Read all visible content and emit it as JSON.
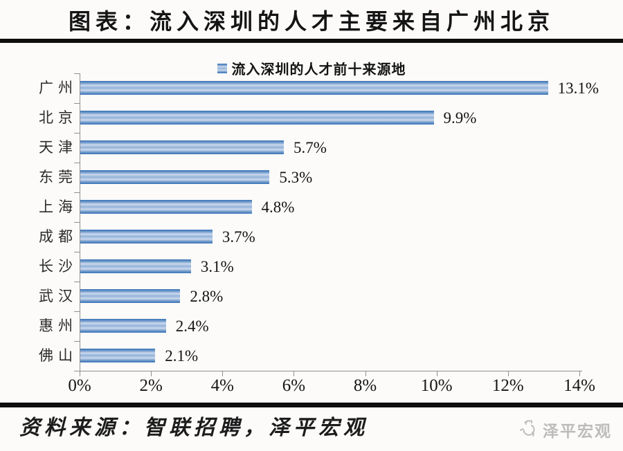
{
  "header": {
    "title": "图表：流入深圳的人才主要来自广州北京"
  },
  "legend": {
    "label": "流入深圳的人才前十来源地"
  },
  "chart_data": {
    "type": "bar",
    "orientation": "horizontal",
    "title": "流入深圳的人才前十来源地",
    "categories": [
      "广州",
      "北京",
      "天津",
      "东莞",
      "上海",
      "成都",
      "长沙",
      "武汉",
      "惠州",
      "佛山"
    ],
    "values": [
      13.1,
      9.9,
      5.7,
      5.3,
      4.8,
      3.7,
      3.1,
      2.8,
      2.4,
      2.1
    ],
    "value_labels": [
      "13.1%",
      "9.9%",
      "5.7%",
      "5.3%",
      "4.8%",
      "3.7%",
      "3.1%",
      "2.8%",
      "2.4%",
      "2.1%"
    ],
    "xlim": [
      0,
      14
    ],
    "x_tick_labels": [
      "0%",
      "2%",
      "4%",
      "6%",
      "8%",
      "10%",
      "12%",
      "14%"
    ],
    "grid": false,
    "legend_position": "top",
    "axis_color": "#8f8f8f",
    "bar_colors": {
      "edge": "#3a72b4",
      "mid": "#6b97cb",
      "light": "#cdd9ec",
      "center": "#92b2da"
    }
  },
  "footer": {
    "source_text": "资料来源：智联招聘，泽平宏观",
    "brand": "泽平宏观"
  }
}
